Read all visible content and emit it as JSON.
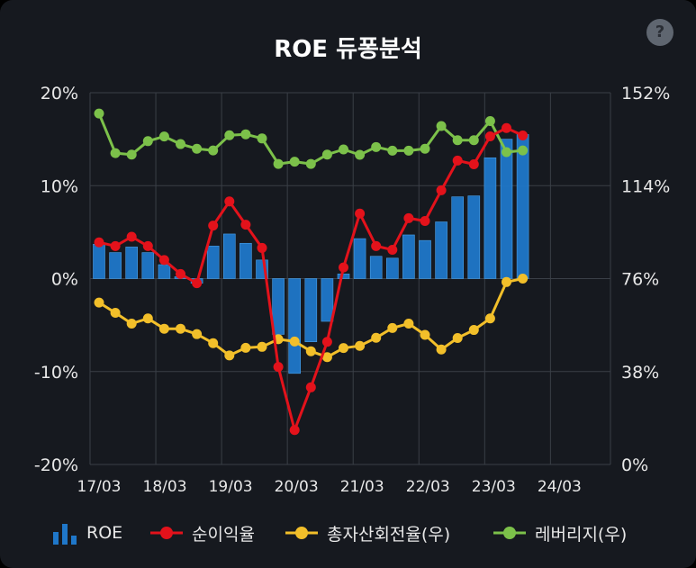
{
  "title": "ROE 듀퐁분석",
  "help_label": "?",
  "chart_data": {
    "type": "bar+line",
    "title": "ROE 듀퐁분석",
    "x_labels": [
      "17/03",
      "18/03",
      "19/03",
      "20/03",
      "21/03",
      "22/03",
      "23/03",
      "24/03"
    ],
    "left_axis": {
      "ticks": [
        "20%",
        "10%",
        "0%",
        "-10%",
        "-20%"
      ],
      "ylim": [
        -20,
        20
      ],
      "unit": "%"
    },
    "right_axis": {
      "ticks": [
        "152%",
        "114%",
        "76%",
        "38%",
        "0%"
      ],
      "ylim": [
        0,
        152
      ],
      "unit": "%"
    },
    "grid": true,
    "legend_position": "bottom",
    "series": [
      {
        "name": "ROE",
        "kind": "bar",
        "axis": "left",
        "color": "#1f77c9",
        "values": [
          3.7,
          2.8,
          3.4,
          2.8,
          1.5,
          0.2,
          -0.5,
          3.5,
          4.8,
          3.8,
          2.0,
          -6.0,
          -10.2,
          -6.8,
          -4.6,
          0.5,
          4.3,
          2.4,
          2.2,
          4.7,
          4.1,
          6.1,
          8.8,
          8.9,
          13.0,
          15.0,
          15.5
        ]
      },
      {
        "name": "순이익율",
        "kind": "line",
        "axis": "left",
        "color": "#e3121b",
        "values": [
          3.9,
          3.5,
          4.5,
          3.5,
          2.0,
          0.5,
          -0.5,
          5.7,
          8.3,
          5.8,
          3.3,
          -9.5,
          -16.3,
          -11.7,
          -6.8,
          1.2,
          7.0,
          3.5,
          3.1,
          6.5,
          6.2,
          9.5,
          12.7,
          12.3,
          15.3,
          16.2,
          15.4
        ]
      },
      {
        "name": "총자산회전율(우)",
        "kind": "line",
        "axis": "right",
        "color": "#f2bf2a",
        "values": [
          66.2,
          62.0,
          57.6,
          59.7,
          55.5,
          55.5,
          53.3,
          49.6,
          44.6,
          47.7,
          48.1,
          51.2,
          50.3,
          46.3,
          43.9,
          47.6,
          48.5,
          51.8,
          55.8,
          57.6,
          53.0,
          47.0,
          51.7,
          55.0,
          59.7,
          74.6,
          76.0
        ]
      },
      {
        "name": "레버리지(우)",
        "kind": "line",
        "axis": "right",
        "color": "#7cc14a",
        "values": [
          143.5,
          127.3,
          126.7,
          132.2,
          134.1,
          131.0,
          129.1,
          128.4,
          134.6,
          135.0,
          133.3,
          122.9,
          123.8,
          122.9,
          126.7,
          128.8,
          126.6,
          129.8,
          128.3,
          128.3,
          129.1,
          138.4,
          132.6,
          132.6,
          140.4,
          127.7,
          128.4
        ]
      }
    ]
  },
  "legend": [
    {
      "label": "ROE",
      "icon": "bar-chart-icon"
    },
    {
      "label": "순이익율",
      "icon": "red-line-marker-icon"
    },
    {
      "label": "총자산회전율(우)",
      "icon": "yellow-line-marker-icon"
    },
    {
      "label": "레버리지(우)",
      "icon": "green-line-marker-icon"
    }
  ]
}
